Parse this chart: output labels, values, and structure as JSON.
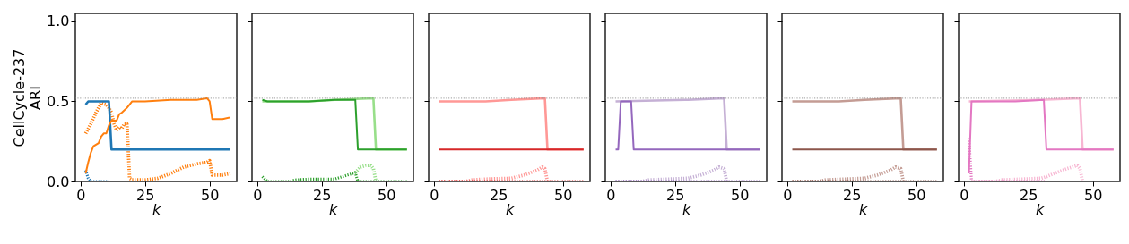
{
  "chart_data": [
    {
      "type": "line",
      "ylabel": "CellCycle-237\nARI",
      "xlabel": "k",
      "xlim": [
        -2,
        60.5
      ],
      "ylim": [
        0,
        1.05
      ],
      "xticks": [
        0,
        25,
        50
      ],
      "yticks": [
        {
          "value": 0,
          "label": "0.0"
        },
        {
          "value": 0.5,
          "label": "0.5"
        },
        {
          "value": 1,
          "label": "1.0"
        }
      ],
      "grid": false,
      "ref_lines": [
        {
          "axis": "y",
          "value": 0.52,
          "color": "#808080",
          "line_style": "dotted"
        }
      ],
      "series": [
        {
          "color": "#ff7f0e",
          "line_style": "dotted",
          "x": [
            2,
            4,
            6,
            8,
            10,
            11,
            12,
            13,
            14,
            15,
            16,
            17,
            18,
            19,
            20,
            25,
            30,
            35,
            40,
            45,
            49,
            50,
            51,
            55,
            58
          ],
          "values": [
            0.3,
            0.36,
            0.43,
            0.49,
            0.48,
            0.46,
            0.43,
            0.36,
            0.32,
            0.34,
            0.33,
            0.36,
            0.36,
            0.02,
            0.01,
            0.01,
            0.02,
            0.05,
            0.09,
            0.11,
            0.12,
            0.13,
            0.04,
            0.04,
            0.05
          ]
        },
        {
          "color": "#1f77b4",
          "line_style": "dotted",
          "x": [
            2,
            3,
            4,
            11
          ],
          "values": [
            0.07,
            0.02,
            0,
            0
          ]
        },
        {
          "color": "#1f77b4",
          "line_style": "solid",
          "x": [
            2,
            3,
            11,
            12,
            58
          ],
          "values": [
            0.48,
            0.5,
            0.5,
            0.2,
            0.2
          ]
        },
        {
          "color": "#ff7f0e",
          "line_style": "solid",
          "x": [
            2,
            3,
            4,
            5,
            6,
            7,
            8,
            9,
            10,
            11,
            12,
            14,
            15,
            16,
            18,
            20,
            25,
            35,
            45,
            49,
            50,
            51,
            55,
            58
          ],
          "values": [
            0.05,
            0.12,
            0.18,
            0.22,
            0.23,
            0.24,
            0.28,
            0.3,
            0.3,
            0.35,
            0.38,
            0.38,
            0.42,
            0.43,
            0.46,
            0.5,
            0.5,
            0.51,
            0.51,
            0.52,
            0.5,
            0.39,
            0.39,
            0.4
          ]
        }
      ]
    },
    {
      "type": "line",
      "xlabel": "k",
      "xlim": [
        -2,
        60.5
      ],
      "ylim": [
        0,
        1.05
      ],
      "xticks": [
        0,
        25,
        50
      ],
      "yticks": [
        0,
        0.5,
        1
      ],
      "tick_labels": "x",
      "grid": false,
      "ref_lines": [
        {
          "axis": "y",
          "value": 0.52,
          "color": "#808080",
          "line_style": "dotted"
        }
      ],
      "series": [
        {
          "color": "#98df8a",
          "line_style": "dotted",
          "x": [
            38,
            40,
            42,
            44,
            45,
            46
          ],
          "values": [
            0.055,
            0.09,
            0.1,
            0.1,
            0.08,
            0
          ]
        },
        {
          "color": "#2ca02c",
          "line_style": "dotted",
          "x": [
            2,
            4,
            12,
            15,
            20,
            30,
            35,
            38,
            39,
            58
          ],
          "values": [
            0.03,
            0,
            0,
            0.01,
            0.015,
            0.015,
            0.04,
            0.055,
            0,
            0
          ]
        },
        {
          "color": "#98df8a",
          "line_style": "solid",
          "x": [
            2,
            20,
            30,
            45,
            46,
            58
          ],
          "values": [
            0.5,
            0.5,
            0.51,
            0.52,
            0.2,
            0.2
          ]
        },
        {
          "color": "#2ca02c",
          "line_style": "solid",
          "x": [
            2,
            4,
            20,
            30,
            38,
            39,
            58
          ],
          "values": [
            0.51,
            0.5,
            0.5,
            0.51,
            0.51,
            0.2,
            0.2
          ]
        }
      ]
    },
    {
      "type": "line",
      "xlabel": "k",
      "xlim": [
        -2,
        60.5
      ],
      "ylim": [
        0,
        1.05
      ],
      "xticks": [
        0,
        25,
        50
      ],
      "yticks": [
        0,
        0.5,
        1
      ],
      "tick_labels": "x",
      "grid": false,
      "ref_lines": [
        {
          "axis": "y",
          "value": 0.52,
          "color": "#808080",
          "line_style": "dotted"
        }
      ],
      "series": [
        {
          "color": "#ff9896",
          "line_style": "dotted",
          "x": [
            2,
            12,
            15,
            20,
            30,
            35,
            40,
            42,
            43,
            44
          ],
          "values": [
            0,
            0,
            0.01,
            0.015,
            0.02,
            0.04,
            0.07,
            0.09,
            0.08,
            0
          ]
        },
        {
          "color": "#d62728",
          "line_style": "dotted",
          "x": [
            2,
            58
          ],
          "values": [
            0,
            0
          ]
        },
        {
          "color": "#ff9896",
          "line_style": "solid",
          "x": [
            2,
            20,
            30,
            43,
            44,
            58
          ],
          "values": [
            0.5,
            0.5,
            0.51,
            0.52,
            0.2,
            0.2
          ]
        },
        {
          "color": "#d62728",
          "line_style": "solid",
          "x": [
            2,
            58
          ],
          "values": [
            0.2,
            0.2
          ]
        }
      ]
    },
    {
      "type": "line",
      "xlabel": "k",
      "xlim": [
        -2,
        60.5
      ],
      "ylim": [
        0,
        1.05
      ],
      "xticks": [
        0,
        25,
        50
      ],
      "yticks": [
        0,
        0.5,
        1
      ],
      "tick_labels": "x",
      "grid": false,
      "ref_lines": [
        {
          "axis": "y",
          "value": 0.52,
          "color": "#808080",
          "line_style": "dotted"
        }
      ],
      "series": [
        {
          "color": "#c5b0d5",
          "line_style": "dotted",
          "x": [
            2,
            12,
            15,
            30,
            35,
            40,
            42,
            44,
            45
          ],
          "values": [
            0,
            0,
            0.01,
            0.02,
            0.04,
            0.07,
            0.09,
            0.08,
            0
          ]
        },
        {
          "color": "#9467bd",
          "line_style": "dotted",
          "x": [
            2,
            58
          ],
          "values": [
            0,
            0
          ]
        },
        {
          "color": "#c5b0d5",
          "line_style": "solid",
          "x": [
            2,
            30,
            44,
            45,
            58
          ],
          "values": [
            0.5,
            0.51,
            0.52,
            0.2,
            0.2
          ]
        },
        {
          "color": "#9467bd",
          "line_style": "solid",
          "x": [
            2,
            3,
            4,
            8,
            9,
            58
          ],
          "values": [
            0.2,
            0.2,
            0.5,
            0.5,
            0.2,
            0.2
          ]
        }
      ]
    },
    {
      "type": "line",
      "xlabel": "k",
      "xlim": [
        -2,
        60.5
      ],
      "ylim": [
        0,
        1.05
      ],
      "xticks": [
        0,
        25,
        50
      ],
      "yticks": [
        0,
        0.5,
        1
      ],
      "tick_labels": "x",
      "grid": false,
      "ref_lines": [
        {
          "axis": "y",
          "value": 0.52,
          "color": "#808080",
          "line_style": "dotted"
        }
      ],
      "series": [
        {
          "color": "#c49c94",
          "line_style": "dotted",
          "x": [
            2,
            12,
            15,
            30,
            35,
            40,
            42,
            44,
            45
          ],
          "values": [
            0,
            0,
            0.01,
            0.02,
            0.04,
            0.07,
            0.09,
            0.08,
            0
          ]
        },
        {
          "color": "#8c564b",
          "line_style": "dotted",
          "x": [
            2,
            58
          ],
          "values": [
            0,
            0
          ]
        },
        {
          "color": "#c49c94",
          "line_style": "solid",
          "x": [
            2,
            20,
            30,
            44,
            45,
            58
          ],
          "values": [
            0.5,
            0.5,
            0.51,
            0.52,
            0.2,
            0.2
          ]
        },
        {
          "color": "#8c564b",
          "line_style": "solid",
          "x": [
            2,
            58
          ],
          "values": [
            0.2,
            0.2
          ]
        }
      ]
    },
    {
      "type": "line",
      "xlabel": "k",
      "xlim": [
        -2,
        60.5
      ],
      "ylim": [
        0,
        1.05
      ],
      "xticks": [
        0,
        25,
        50
      ],
      "yticks": [
        0,
        0.5,
        1
      ],
      "tick_labels": "x",
      "grid": false,
      "ref_lines": [
        {
          "axis": "y",
          "value": 0.52,
          "color": "#808080",
          "line_style": "dotted"
        }
      ],
      "series": [
        {
          "color": "#f7b6d2",
          "line_style": "dotted",
          "x": [
            3,
            12,
            15,
            30,
            32,
            35,
            40,
            44,
            45,
            46
          ],
          "values": [
            0,
            0,
            0.01,
            0.02,
            0.03,
            0.05,
            0.08,
            0.1,
            0.08,
            0
          ]
        },
        {
          "color": "#e377c2",
          "line_style": "dotted",
          "x": [
            2,
            3,
            31,
            32
          ],
          "values": [
            0.27,
            0,
            0,
            0
          ]
        },
        {
          "color": "#f7b6d2",
          "line_style": "solid",
          "x": [
            2,
            30,
            45,
            46,
            58
          ],
          "values": [
            0.5,
            0.51,
            0.52,
            0.2,
            0.2
          ]
        },
        {
          "color": "#e377c2",
          "line_style": "solid",
          "x": [
            2,
            3,
            20,
            31,
            32,
            58
          ],
          "values": [
            0.05,
            0.5,
            0.5,
            0.51,
            0.2,
            0.2
          ]
        }
      ]
    }
  ]
}
